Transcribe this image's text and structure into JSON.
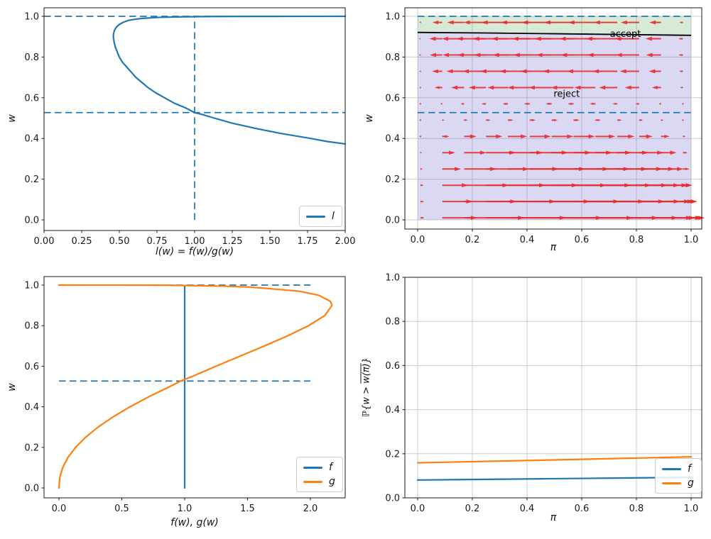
{
  "colors": {
    "blue": "#1f77b4",
    "orange": "#ff7f0e",
    "quiver_red": "#e62e2e",
    "boundary_black": "#000000",
    "accept_fill": "rgba(34,139,34,0.18)",
    "reject_fill": "rgba(106,90,205,0.24)",
    "grid": "#cccccc",
    "spine": "#1a1a1a",
    "tick_text": "#1a1a1a"
  },
  "chart_data": [
    {
      "id": "likelihood-ratio",
      "type": "line",
      "xlabel": "l(w) = f(w)/g(w)",
      "ylabel": "w",
      "xlim": [
        0,
        2
      ],
      "ylim": [
        -0.05,
        1.04
      ],
      "grid": false,
      "xticks": {
        "vals": [
          0,
          0.25,
          0.5,
          0.75,
          1,
          1.25,
          1.5,
          1.75,
          2
        ],
        "labels": [
          "0.00",
          "0.25",
          "0.50",
          "0.75",
          "1.00",
          "1.25",
          "1.50",
          "1.75",
          "2.00"
        ]
      },
      "yticks": {
        "vals": [
          0,
          0.2,
          0.4,
          0.6,
          0.8,
          1
        ],
        "labels": [
          "0.0",
          "0.2",
          "0.4",
          "0.6",
          "0.8",
          "1.0"
        ]
      },
      "dashed_h": {
        "ws": [
          1.0,
          0.527
        ],
        "span": [
          0,
          2
        ]
      },
      "dashed_v": {
        "x": 1.0,
        "wspan": [
          0,
          1
        ]
      },
      "series": [
        {
          "name": "l",
          "color": "#1f77b4",
          "points": [
            [
              2.0,
              0.373
            ],
            [
              1.88,
              0.385
            ],
            [
              1.77,
              0.4
            ],
            [
              1.57,
              0.425
            ],
            [
              1.4,
              0.45
            ],
            [
              1.25,
              0.475
            ],
            [
              1.13,
              0.5
            ],
            [
              1.04,
              0.52
            ],
            [
              1.0,
              0.527
            ],
            [
              0.94,
              0.55
            ],
            [
              0.86,
              0.575
            ],
            [
              0.8,
              0.6
            ],
            [
              0.74,
              0.625
            ],
            [
              0.69,
              0.65
            ],
            [
              0.65,
              0.675
            ],
            [
              0.61,
              0.7
            ],
            [
              0.58,
              0.725
            ],
            [
              0.55,
              0.75
            ],
            [
              0.52,
              0.775
            ],
            [
              0.5,
              0.8
            ],
            [
              0.486,
              0.825
            ],
            [
              0.473,
              0.85
            ],
            [
              0.465,
              0.875
            ],
            [
              0.46,
              0.9
            ],
            [
              0.461,
              0.91
            ],
            [
              0.463,
              0.92
            ],
            [
              0.47,
              0.935
            ],
            [
              0.484,
              0.95
            ],
            [
              0.5,
              0.96
            ],
            [
              0.524,
              0.97
            ],
            [
              0.56,
              0.98
            ],
            [
              0.6,
              0.985
            ],
            [
              0.654,
              0.99
            ],
            [
              0.767,
              0.995
            ],
            [
              0.91,
              0.9975
            ],
            [
              1.125,
              0.999
            ],
            [
              1.4,
              0.9995
            ],
            [
              1.7,
              0.9998
            ],
            [
              2.0,
              0.9999
            ]
          ]
        }
      ],
      "legend": [
        {
          "label": "l",
          "color": "#1f77b4"
        }
      ]
    },
    {
      "id": "phase-diagram",
      "type": "quiver",
      "xlabel": "π",
      "ylabel": "w",
      "xlim": [
        -0.05,
        1.04
      ],
      "ylim": [
        -0.05,
        1.04
      ],
      "grid": true,
      "xticks": {
        "vals": [
          0,
          0.2,
          0.4,
          0.6,
          0.8,
          1
        ],
        "labels": [
          "0.0",
          "0.2",
          "0.4",
          "0.6",
          "0.8",
          "1.0"
        ]
      },
      "yticks": {
        "vals": [
          0,
          0.2,
          0.4,
          0.6,
          0.8,
          1
        ],
        "labels": [
          "0.0",
          "0.2",
          "0.4",
          "0.6",
          "0.8",
          "1.0"
        ]
      },
      "dashed_h": {
        "ws": [
          1.0,
          0.527
        ],
        "span": [
          0,
          1
        ]
      },
      "regions": {
        "boundary": [
          [
            0,
            0.921
          ],
          [
            0.25,
            0.918
          ],
          [
            0.5,
            0.9145
          ],
          [
            0.75,
            0.9105
          ],
          [
            1,
            0.9065
          ]
        ],
        "accept_top": 1.0,
        "reject_bottom": 0.0
      },
      "quiver": {
        "cols": [
          0.01,
          0.09,
          0.17,
          0.25,
          0.33,
          0.41,
          0.49,
          0.57,
          0.65,
          0.73,
          0.81,
          0.89,
          0.97
        ],
        "rows": [
          [
            0.01,
            0.39
          ],
          [
            0.09,
            0.34
          ],
          [
            0.17,
            0.29
          ],
          [
            0.25,
            0.21
          ],
          [
            0.33,
            0.145
          ],
          [
            0.41,
            0.08
          ],
          [
            0.49,
            0.022
          ],
          [
            0.57,
            -0.022
          ],
          [
            0.65,
            -0.085
          ],
          [
            0.73,
            -0.115
          ],
          [
            0.81,
            -0.14
          ],
          [
            0.89,
            -0.145
          ],
          [
            0.97,
            -0.11
          ]
        ]
      },
      "annotations": [
        {
          "text": "accept",
          "x": 0.76,
          "y": 0.915
        },
        {
          "text": "reject",
          "x": 0.545,
          "y": 0.62
        }
      ]
    },
    {
      "id": "densities",
      "type": "line",
      "xlabel": "f(w), g(w)",
      "ylabel": "w",
      "xlim": [
        -0.11,
        2.28
      ],
      "ylim": [
        -0.05,
        1.04
      ],
      "grid": false,
      "xticks": {
        "vals": [
          0,
          0.5,
          1,
          1.5,
          2
        ],
        "labels": [
          "0.0",
          "0.5",
          "1.0",
          "1.5",
          "2.0"
        ]
      },
      "yticks": {
        "vals": [
          0,
          0.2,
          0.4,
          0.6,
          0.8,
          1
        ],
        "labels": [
          "0.0",
          "0.2",
          "0.4",
          "0.6",
          "0.8",
          "1.0"
        ]
      },
      "dashed_h": {
        "ws": [
          1.0,
          0.527
        ],
        "span": [
          0,
          2
        ]
      },
      "series": [
        {
          "name": "f",
          "color": "#1f77b4",
          "points": [
            [
              1,
              0
            ],
            [
              1,
              0.993
            ]
          ]
        },
        {
          "name": "g",
          "color": "#ff7f0e",
          "points": [
            [
              0,
              0
            ],
            [
              0.0065,
              0.05
            ],
            [
              0.0294,
              0.1
            ],
            [
              0.071,
              0.15
            ],
            [
              0.1319,
              0.2
            ],
            [
              0.2123,
              0.25
            ],
            [
              0.3113,
              0.3
            ],
            [
              0.4294,
              0.35
            ],
            [
              0.565,
              0.4
            ],
            [
              0.7167,
              0.45
            ],
            [
              0.8831,
              0.5
            ],
            [
              0.9607,
              0.525
            ],
            [
              1.0611,
              0.55
            ],
            [
              1.2488,
              0.6
            ],
            [
              1.4412,
              0.65
            ],
            [
              1.6337,
              0.7
            ],
            [
              1.8189,
              0.75
            ],
            [
              1.9855,
              0.8
            ],
            [
              2.1148,
              0.85
            ],
            [
              2.1717,
              0.9
            ],
            [
              2.1589,
              0.92
            ],
            [
              2.0658,
              0.95
            ],
            [
              1.909,
              0.97
            ],
            [
              1.5278,
              0.99
            ],
            [
              1.3044,
              0.995
            ],
            [
              0.8887,
              0.999
            ],
            [
              0.45,
              0.9997
            ],
            [
              0,
              1.0
            ]
          ]
        }
      ],
      "legend": [
        {
          "label": "f",
          "color": "#1f77b4"
        },
        {
          "label": "g",
          "color": "#ff7f0e"
        }
      ]
    },
    {
      "id": "tail-probability",
      "type": "line",
      "xlabel": "π",
      "ylabel": "ℙ{w > w̄(π)}",
      "ylabel_parts": {
        "prefix": "ℙ{w > ",
        "bar": "w(π)",
        "suffix": "}"
      },
      "xlim": [
        -0.05,
        1.04
      ],
      "ylim": [
        0,
        1
      ],
      "grid": true,
      "xticks": {
        "vals": [
          0,
          0.2,
          0.4,
          0.6,
          0.8,
          1
        ],
        "labels": [
          "0.0",
          "0.2",
          "0.4",
          "0.6",
          "0.8",
          "1.0"
        ]
      },
      "yticks": {
        "vals": [
          0,
          0.2,
          0.4,
          0.6,
          0.8,
          1
        ],
        "labels": [
          "0.0",
          "0.2",
          "0.4",
          "0.6",
          "0.8",
          "1.0"
        ]
      },
      "series": [
        {
          "name": "f",
          "color": "#1f77b4",
          "points": [
            [
              0,
              0.081
            ],
            [
              0.5,
              0.087
            ],
            [
              1,
              0.093
            ]
          ]
        },
        {
          "name": "g",
          "color": "#ff7f0e",
          "points": [
            [
              0,
              0.159
            ],
            [
              0.5,
              0.172
            ],
            [
              1,
              0.186
            ]
          ]
        }
      ],
      "legend": [
        {
          "label": "f",
          "color": "#1f77b4"
        },
        {
          "label": "g",
          "color": "#ff7f0e"
        }
      ]
    }
  ]
}
